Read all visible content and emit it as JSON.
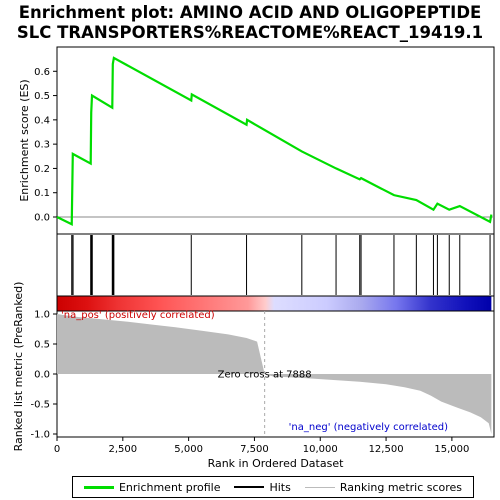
{
  "title_line1": "Enrichment plot: AMINO ACID AND OLIGOPEPTIDE",
  "title_line2": "SLC TRANSPORTERS%REACTOME%REACT_19419.1",
  "legend": {
    "enrichment": "Enrichment profile",
    "hits": "Hits",
    "ranking": "Ranking metric scores"
  },
  "colors": {
    "enrichment": "#00dd00",
    "hits": "#000000",
    "ranking": "#bbbbbb"
  },
  "chart_data": {
    "type": "line",
    "top_panel": {
      "ylabel": "Enrichment score (ES)",
      "ylim": [
        -0.07,
        0.7
      ],
      "yticks": [
        0.0,
        0.1,
        0.2,
        0.3,
        0.4,
        0.5,
        0.6
      ],
      "ytick_labels": [
        "0.0",
        "0.1",
        "0.2",
        "0.3",
        "0.4",
        "0.5",
        "0.6"
      ],
      "es_profile": {
        "x": [
          0,
          560,
          600,
          1280,
          1300,
          1330,
          2100,
          2120,
          2160,
          5100,
          5120,
          7200,
          7220,
          9300,
          10600,
          11500,
          11550,
          12800,
          13650,
          14300,
          14450,
          14900,
          15300,
          16450,
          16500
        ],
        "y": [
          0.0,
          -0.03,
          0.26,
          0.22,
          0.43,
          0.5,
          0.45,
          0.63,
          0.655,
          0.48,
          0.505,
          0.38,
          0.4,
          0.27,
          0.2,
          0.155,
          0.16,
          0.09,
          0.07,
          0.03,
          0.055,
          0.03,
          0.045,
          -0.02,
          0.01
        ]
      }
    },
    "hits": [
      560,
      600,
      610,
      1280,
      1300,
      1320,
      1340,
      2100,
      2120,
      2140,
      2160,
      5100,
      7200,
      9300,
      10600,
      11500,
      11550,
      12800,
      13650,
      14300,
      14450,
      14900,
      15300,
      16450
    ],
    "bottom_panel": {
      "ylabel": "Ranked list metric (PreRanked)",
      "xlabel": "Rank in Ordered Dataset",
      "ylim": [
        -1.05,
        1.05
      ],
      "yticks": [
        1.0,
        0.5,
        0.0,
        -0.5,
        -1.0
      ],
      "ytick_labels": [
        "1.0",
        "0.5",
        "0.0",
        "-0.5",
        "-1.0"
      ],
      "xticks": [
        0,
        2500,
        5000,
        7500,
        10000,
        12500,
        15000
      ],
      "xtick_labels": [
        "0",
        "2,500",
        "5,000",
        "7,500",
        "10,000",
        "12,500",
        "15,000"
      ],
      "xlim": [
        0,
        16600
      ],
      "metric_x": [
        0,
        300,
        800,
        1500,
        2500,
        3500,
        4500,
        5500,
        6500,
        7200,
        7600,
        7888,
        8200,
        9500,
        10500,
        11500,
        12500,
        13200,
        13800,
        14200,
        14600,
        15200,
        15700,
        16100,
        16400,
        16500
      ],
      "metric_y": [
        1.0,
        0.98,
        0.95,
        0.92,
        0.88,
        0.83,
        0.78,
        0.72,
        0.66,
        0.6,
        0.54,
        0.0,
        -0.04,
        -0.07,
        -0.1,
        -0.13,
        -0.17,
        -0.22,
        -0.28,
        -0.36,
        -0.46,
        -0.56,
        -0.64,
        -0.72,
        -0.82,
        -1.0
      ],
      "annotations": {
        "pos": "'na_pos' (positively correlated)",
        "neg": "'na_neg' (negatively correlated)",
        "zero": "Zero cross at 7888"
      }
    }
  }
}
